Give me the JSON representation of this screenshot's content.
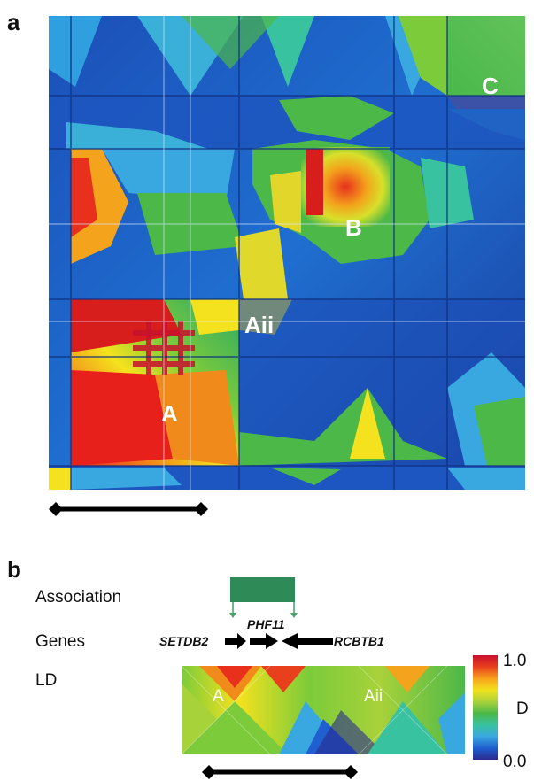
{
  "panel_a": {
    "letter": "a",
    "heatmap_labels": {
      "A": "A",
      "Aii": "Aii",
      "B": "B",
      "C": "C"
    }
  },
  "panel_b": {
    "letter": "b",
    "row_labels": {
      "association": "Association",
      "genes": "Genes",
      "ld": "LD"
    },
    "genes": {
      "left": "SETDB2",
      "middle": "PHF11",
      "right": "RCBTB1"
    },
    "ld_labels": {
      "A": "A",
      "Aii": "Aii"
    },
    "colorbar": {
      "max": "1.0",
      "min": "0.0",
      "label": "D",
      "colors": [
        "#2a2a8f",
        "#1f5fcf",
        "#3aa8e0",
        "#39c2a0",
        "#4cb848",
        "#a8d23a",
        "#f2e21e",
        "#f7a21c",
        "#e8401c",
        "#c8102e"
      ]
    }
  },
  "colors": {
    "association_box": "#2e8b57",
    "association_arrow": "#4aa36f",
    "black": "#000000"
  }
}
